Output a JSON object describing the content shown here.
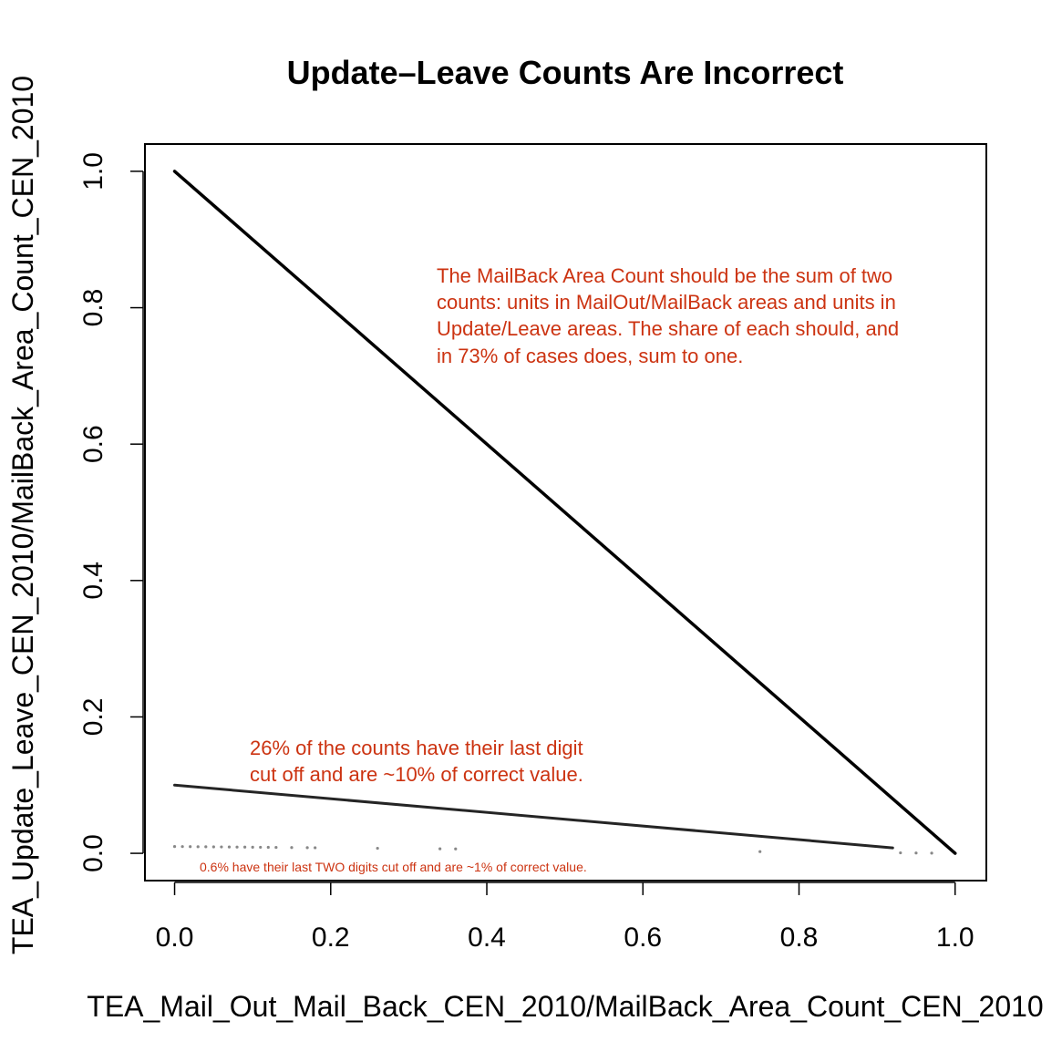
{
  "chart_data": {
    "type": "scatter",
    "title": "Update–Leave Counts Are Incorrect",
    "xlabel": "TEA_Mail_Out_Mail_Back_CEN_2010/MailBack_Area_Count_CEN_2010",
    "ylabel": "TEA_Update_Leave_CEN_2010/MailBack_Area_Count_CEN_2010",
    "xlim": [
      -0.038,
      1.04
    ],
    "ylim": [
      -0.04,
      1.04
    ],
    "x_ticks": [
      0.0,
      0.2,
      0.4,
      0.6,
      0.8,
      1.0
    ],
    "x_tick_labels": [
      "0.0",
      "0.2",
      "0.4",
      "0.6",
      "0.8",
      "1.0"
    ],
    "y_ticks": [
      0.0,
      0.2,
      0.4,
      0.6,
      0.8,
      1.0
    ],
    "y_tick_labels": [
      "0.0",
      "0.2",
      "0.4",
      "0.6",
      "0.8",
      "1.0"
    ],
    "grid": false,
    "series": [
      {
        "description_points": "y = 1 - x",
        "segments": [
          [
            0.0,
            1.0,
            1.0,
            0.0
          ]
        ],
        "color": "#000000"
      },
      {
        "description_points": "y = 0.1 * (1 - x)",
        "segments": [
          [
            0.0,
            0.1,
            0.92,
            0.008
          ]
        ],
        "color": "#000000"
      },
      {
        "description_points": "y = 0.01 * (1 - x)",
        "x": [
          0.0,
          0.01,
          0.02,
          0.03,
          0.04,
          0.05,
          0.06,
          0.07,
          0.08,
          0.09,
          0.1,
          0.11,
          0.12,
          0.13,
          0.15,
          0.17,
          0.18,
          0.26,
          0.34,
          0.36,
          0.75,
          0.93,
          0.95,
          0.97
        ],
        "y": [
          0.01,
          0.0099,
          0.0098,
          0.0097,
          0.0096,
          0.0095,
          0.0094,
          0.0093,
          0.0092,
          0.0091,
          0.009,
          0.0089,
          0.0088,
          0.0087,
          0.0085,
          0.0083,
          0.0082,
          0.0074,
          0.0066,
          0.0064,
          0.0025,
          0.0007,
          0.0005,
          0.0003
        ],
        "color": "#555555"
      }
    ],
    "annotations": [
      {
        "lines": [
          "The MailBack Area Count should be the sum of two",
          "counts: units in MailOut/MailBack areas and units in",
          "Update/Leave areas. The share of each should, and",
          "in 73% of cases does, sum to one."
        ],
        "color": "#cc3311"
      },
      {
        "lines": [
          "26% of the counts have their last digit",
          "cut off and are ~10% of correct value."
        ],
        "color": "#cc3311"
      },
      {
        "lines": [
          "0.6% have their last TWO digits cut off and are ~1% of correct value."
        ],
        "color": "#cc3311"
      }
    ]
  }
}
